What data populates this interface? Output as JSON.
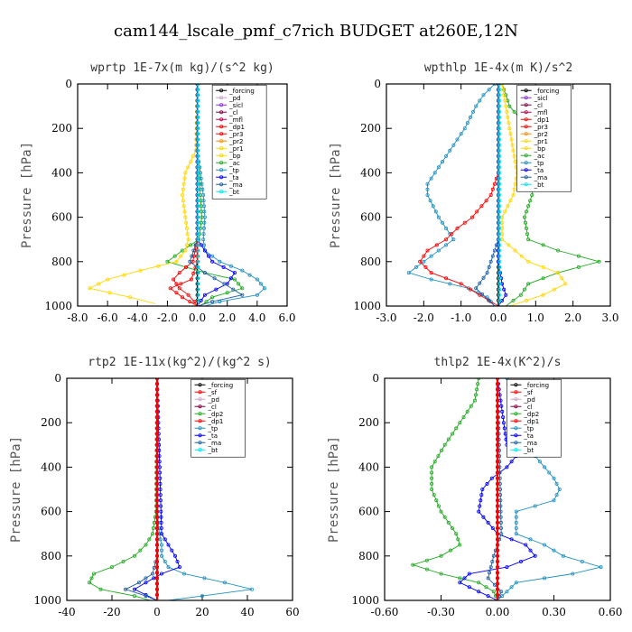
{
  "suptitle": "cam144_lscale_pmf_c7rich  BUDGET at260E,12N",
  "colors": {
    "forcing": "#000000",
    "sf": "#ff0000",
    "pd": "#c8a2c8",
    "sicl": "#8a2be2",
    "cl": "#800040",
    "mfl": "#c00050",
    "dp1": "#ff0000",
    "dp2": "#22aa22",
    "pr3": "#ff0000",
    "pr2": "#ff8c00",
    "pr1": "#ffd700",
    "bp": "#ffd700",
    "ac": "#22aa22",
    "tp": "#2090c0",
    "ta": "#0000ff",
    "ma": "#2060a0",
    "bt": "#00e5ee"
  },
  "chart_data": [
    {
      "type": "line",
      "title": "wprtp  1E-7x(m kg)/(s^2 kg)",
      "ylabel": "Pressure [hPa]",
      "xlim": [
        -8,
        6
      ],
      "ylim": [
        1000,
        0
      ],
      "xticks": [
        "-8.0",
        "-6.0",
        "-4.0",
        "-2.0",
        "0.0",
        "2.0",
        "4.0",
        "6.0"
      ],
      "yticks": [
        "0",
        "200",
        "400",
        "600",
        "800",
        "1000"
      ],
      "legend": [
        "_forcing",
        "_pd",
        "_sicl",
        "_cl",
        "_mfl",
        "_dp1",
        "_pr3",
        "_pr2",
        "_pr1",
        "_bp",
        "_ac",
        "_tp",
        "_ta",
        "_ma",
        "_bt"
      ],
      "legend_box": {
        "x": 1.0,
        "y": 5
      },
      "series": [
        {
          "name": "_forcing",
          "color": "#000000",
          "y": [
            0,
            1000
          ],
          "x": [
            0,
            0
          ]
        },
        {
          "name": "_ac",
          "color": "#22aa22",
          "y": [
            0,
            300,
            400,
            500,
            600,
            700,
            750,
            800,
            850,
            880,
            920,
            960,
            1000
          ],
          "x": [
            0,
            0,
            0.1,
            0.2,
            0.3,
            0.1,
            -1.0,
            -2.0,
            0.5,
            2.5,
            3.0,
            1.0,
            0.2
          ]
        },
        {
          "name": "_pr1",
          "color": "#ffd700",
          "y": [
            0,
            300,
            400,
            500,
            600,
            700,
            750,
            800,
            840,
            880,
            920,
            960,
            990
          ],
          "x": [
            0,
            -0.1,
            -0.8,
            -1.0,
            -0.8,
            -0.6,
            -0.8,
            -1.4,
            -3.8,
            -6.0,
            -7.2,
            -4.5,
            -2.8
          ]
        },
        {
          "name": "_tp",
          "color": "#2090c0",
          "y": [
            0,
            300,
            400,
            500,
            600,
            700,
            750,
            800,
            840,
            880,
            920,
            950,
            980,
            1000
          ],
          "x": [
            0,
            0,
            0.2,
            0.4,
            0.5,
            0.4,
            0.5,
            1.5,
            3.0,
            4.0,
            4.5,
            4.0,
            1.5,
            0.5
          ]
        },
        {
          "name": "_dp1",
          "color": "#ff0000",
          "y": [
            0,
            700,
            800,
            850,
            880,
            920,
            950,
            980,
            1000
          ],
          "x": [
            0,
            0,
            -0.3,
            -1.2,
            -1.6,
            -1.2,
            -0.6,
            -0.2,
            0
          ]
        },
        {
          "name": "_pr3",
          "color": "#ff0000",
          "y": [
            0,
            800,
            880,
            920,
            960,
            1000
          ],
          "x": [
            0,
            0,
            -0.4,
            -1.8,
            -1.0,
            0
          ]
        },
        {
          "name": "_ta",
          "color": "#0000ff",
          "y": [
            0,
            700,
            800,
            850,
            900,
            950,
            1000
          ],
          "x": [
            0,
            0,
            1.0,
            2.5,
            2.0,
            0.5,
            0
          ]
        },
        {
          "name": "_ma",
          "color": "#2060a0",
          "y": [
            0,
            700,
            800,
            850,
            900,
            950,
            980,
            1000
          ],
          "x": [
            0,
            0,
            -0.5,
            0.5,
            1.8,
            3.0,
            1.0,
            0
          ]
        },
        {
          "name": "_bt",
          "color": "#00e5ee",
          "y": [
            0,
            1000
          ],
          "x": [
            0.05,
            0.05
          ]
        }
      ]
    },
    {
      "type": "line",
      "title": "wpthlp  1E-4x(m K)/s^2",
      "ylabel": "Pressure [hPa]",
      "xlim": [
        -3,
        3
      ],
      "ylim": [
        1000,
        0
      ],
      "xticks": [
        "-3.0",
        "-2.0",
        "-1.0",
        "0.0",
        "1.0",
        "2.0",
        "3.0"
      ],
      "yticks": [
        "0",
        "200",
        "400",
        "600",
        "800",
        "1000"
      ],
      "legend": [
        "_forcing",
        "_sicl",
        "_cl",
        "_mfl",
        "_dp1",
        "_pr3",
        "_pr2",
        "_pr1",
        "_bp",
        "_ac",
        "_tp",
        "_ta",
        "_ma",
        "_bt"
      ],
      "legend_box": {
        "x": 0.5,
        "y": 5
      },
      "series": [
        {
          "name": "_forcing",
          "color": "#000000",
          "y": [
            0,
            1000
          ],
          "x": [
            0,
            0
          ]
        },
        {
          "name": "_tp",
          "color": "#2090c0",
          "y": [
            0,
            50,
            100,
            200,
            300,
            400,
            450,
            500,
            600,
            700,
            800,
            850,
            880,
            920,
            960,
            1000
          ],
          "x": [
            -0.1,
            -0.4,
            -0.6,
            -0.9,
            -1.3,
            -1.7,
            -1.9,
            -1.9,
            -1.6,
            -1.2,
            -2.0,
            -2.4,
            -1.8,
            -0.8,
            -0.3,
            -0.1
          ]
        },
        {
          "name": "_dp1",
          "color": "#ff0000",
          "y": [
            0,
            400,
            500,
            600,
            650,
            700,
            750,
            800,
            850,
            900,
            950,
            1000
          ],
          "x": [
            0,
            0,
            -0.2,
            -0.7,
            -1.1,
            -1.4,
            -1.9,
            -2.1,
            -1.8,
            -1.0,
            -0.5,
            0
          ]
        },
        {
          "name": "_ac",
          "color": "#22aa22",
          "y": [
            0,
            100,
            200,
            300,
            400,
            500,
            600,
            700,
            750,
            800,
            850,
            900,
            950,
            1000
          ],
          "x": [
            0.1,
            0.3,
            0.8,
            1.2,
            1.0,
            0.9,
            0.7,
            0.8,
            1.6,
            2.7,
            1.6,
            0.8,
            0.6,
            0.2
          ]
        },
        {
          "name": "_pr1",
          "color": "#ffd700",
          "y": [
            0,
            200,
            400,
            500,
            600,
            700,
            800,
            850,
            900,
            950,
            1000
          ],
          "x": [
            0.1,
            0.3,
            0.5,
            0.4,
            0.1,
            0.1,
            0.8,
            1.6,
            1.8,
            1.2,
            0.3
          ]
        },
        {
          "name": "_ta",
          "color": "#0000ff",
          "y": [
            0,
            800,
            900,
            950,
            1000
          ],
          "x": [
            0,
            0,
            0.1,
            0.2,
            0
          ]
        },
        {
          "name": "_ma",
          "color": "#2060a0",
          "y": [
            0,
            700,
            850,
            920,
            1000
          ],
          "x": [
            0,
            0,
            -0.3,
            -0.6,
            -0.1
          ]
        },
        {
          "name": "_bt",
          "color": "#00e5ee",
          "y": [
            0,
            1000
          ],
          "x": [
            0.03,
            0.03
          ]
        }
      ]
    },
    {
      "type": "line",
      "title": "rtp2  1E-11x(kg^2)/(kg^2 s)",
      "ylabel": "Pressure [hPa]",
      "xlim": [
        -40,
        60
      ],
      "ylim": [
        1000,
        0
      ],
      "xticks": [
        "-40",
        "-20",
        "0",
        "20",
        "40",
        "60"
      ],
      "yticks": [
        "0",
        "200",
        "400",
        "600",
        "800",
        "1000"
      ],
      "legend": [
        "_forcing",
        "_sf",
        "_pd",
        "_cl",
        "_dp2",
        "_dp1",
        "_tp",
        "_ta",
        "_ma",
        "_bt"
      ],
      "legend_box": {
        "x": 15,
        "y": 5
      },
      "series": [
        {
          "name": "_forcing",
          "color": "#000000",
          "y": [
            0,
            1000
          ],
          "x": [
            0,
            0
          ]
        },
        {
          "name": "_dp1",
          "color": "#22aa22",
          "y": [
            0,
            600,
            700,
            750,
            800,
            850,
            880,
            920,
            950,
            980,
            1000
          ],
          "x": [
            0,
            -0.5,
            -2,
            -5,
            -10,
            -20,
            -28,
            -30,
            -25,
            -10,
            -3
          ]
        },
        {
          "name": "_tp",
          "color": "#2090c0",
          "y": [
            0,
            600,
            700,
            750,
            800,
            850,
            880,
            920,
            950,
            980,
            1000
          ],
          "x": [
            0,
            0,
            1,
            2,
            2,
            5,
            12,
            30,
            42,
            20,
            5
          ]
        },
        {
          "name": "_ta",
          "color": "#0000ff",
          "y": [
            0,
            700,
            750,
            800,
            850,
            880,
            920,
            950,
            1000
          ],
          "x": [
            0,
            2,
            5,
            8,
            10,
            2,
            -5,
            -10,
            0
          ]
        },
        {
          "name": "_ma",
          "color": "#2060a0",
          "y": [
            0,
            800,
            880,
            920,
            950,
            980,
            1000
          ],
          "x": [
            0,
            0,
            -2,
            -8,
            -14,
            -5,
            0
          ]
        },
        {
          "name": "_sf",
          "color": "#ff0000",
          "y": [
            0,
            1000
          ],
          "x": [
            0,
            0
          ]
        }
      ]
    },
    {
      "type": "line",
      "title": "thlp2  1E-4x(K^2)/s",
      "ylabel": "Pressure [hPa]",
      "xlim": [
        -0.6,
        0.6
      ],
      "ylim": [
        1000,
        0
      ],
      "xticks": [
        "-0.60",
        "-0.30",
        "0.00",
        "0.30",
        "0.60"
      ],
      "yticks": [
        "0",
        "200",
        "400",
        "600",
        "800",
        "1000"
      ],
      "legend": [
        "_forcing",
        "_sf",
        "_pd",
        "_cl",
        "_dp2",
        "_dp1",
        "_tp",
        "_ta",
        "_ma",
        "_bt"
      ],
      "legend_box": {
        "x": 0.05,
        "y": 5
      },
      "series": [
        {
          "name": "_forcing",
          "color": "#000000",
          "y": [
            0,
            1000
          ],
          "x": [
            0,
            0
          ]
        },
        {
          "name": "_dp1",
          "color": "#22aa22",
          "y": [
            0,
            100,
            200,
            300,
            400,
            500,
            600,
            700,
            750,
            800,
            840,
            880,
            920,
            960,
            1000
          ],
          "x": [
            -0.1,
            -0.12,
            -0.2,
            -0.28,
            -0.35,
            -0.35,
            -0.3,
            -0.22,
            -0.2,
            -0.3,
            -0.45,
            -0.3,
            -0.1,
            -0.02,
            0
          ]
        },
        {
          "name": "_tp",
          "color": "#2090c0",
          "y": [
            0,
            100,
            200,
            300,
            400,
            450,
            500,
            550,
            600,
            700,
            750,
            800,
            850,
            880,
            920,
            960,
            1000
          ],
          "x": [
            0.05,
            0.08,
            0.1,
            0.15,
            0.25,
            0.3,
            0.33,
            0.3,
            0.1,
            0.1,
            0.25,
            0.35,
            0.55,
            0.4,
            0.1,
            0.05,
            0
          ]
        },
        {
          "name": "_ta",
          "color": "#0000ff",
          "y": [
            0,
            300,
            350,
            400,
            450,
            500,
            600,
            700,
            750,
            800,
            850,
            880,
            920,
            960,
            1000
          ],
          "x": [
            0,
            0.05,
            0.1,
            0.05,
            -0.03,
            -0.08,
            -0.1,
            0,
            0.15,
            0.2,
            0.05,
            -0.15,
            -0.2,
            -0.1,
            0
          ]
        },
        {
          "name": "_ma",
          "color": "#2060a0",
          "y": [
            0,
            700,
            800,
            900,
            960,
            1000
          ],
          "x": [
            0,
            0.02,
            -0.02,
            -0.05,
            0.02,
            0
          ]
        },
        {
          "name": "_sf",
          "color": "#ff0000",
          "y": [
            0,
            1000
          ],
          "x": [
            0,
            0
          ]
        }
      ]
    }
  ]
}
